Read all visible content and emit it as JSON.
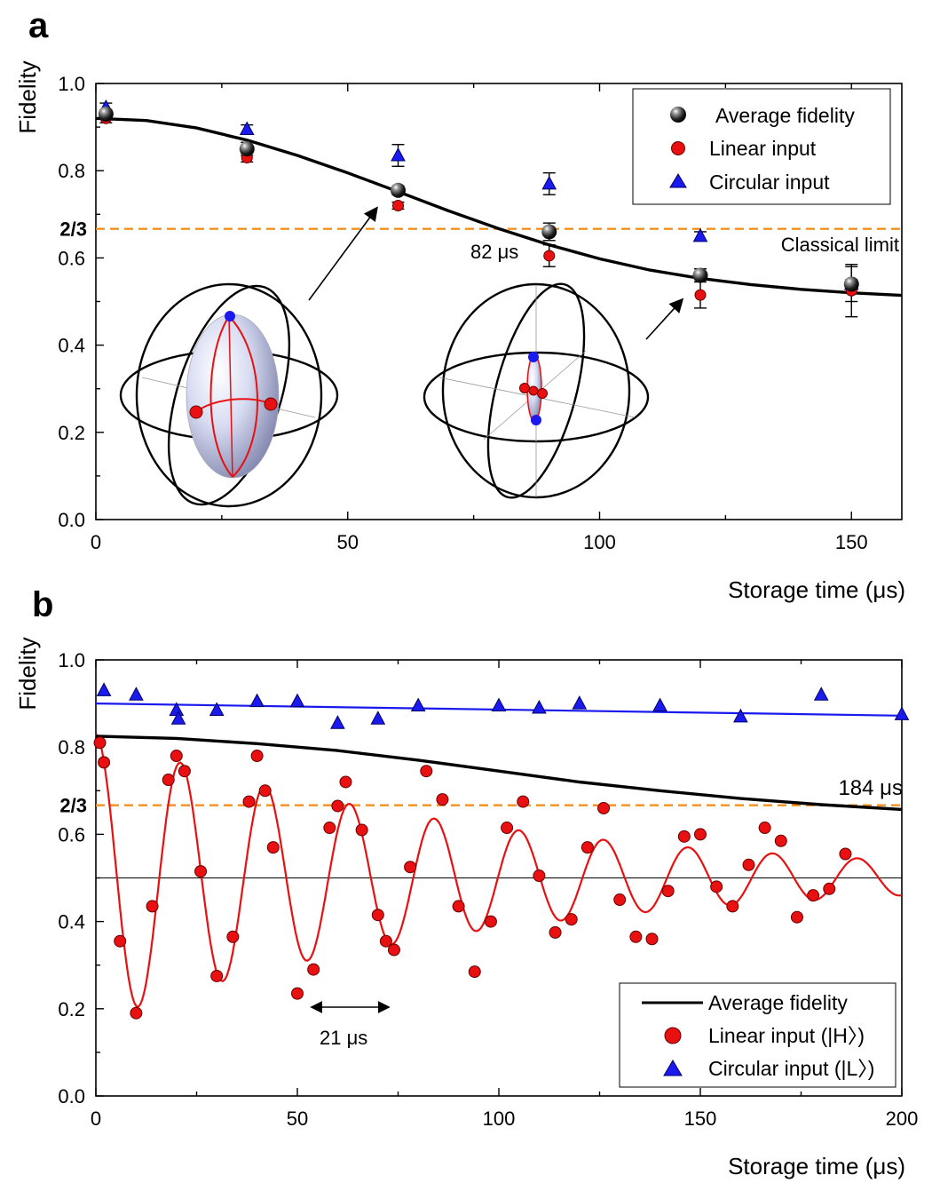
{
  "chart_data": [
    {
      "panel": "a",
      "type": "scatter",
      "xlabel": "Storage time (μs)",
      "ylabel": "Fidelity",
      "xlim": [
        0,
        160
      ],
      "ylim": [
        0,
        1.0
      ],
      "x_ticks": [
        0,
        50,
        100,
        150
      ],
      "y_ticks": [
        0.0,
        0.2,
        0.4,
        0.6,
        0.8,
        1.0
      ],
      "y_ticks_labeled": [
        "0.0",
        "0.2",
        "0.4",
        "0.6",
        "0.8",
        "1.0"
      ],
      "x_ticks_labeled": [
        "0",
        "50",
        "100",
        "150"
      ],
      "classical_limit_value": 0.6667,
      "classical_limit_label": "2/3",
      "classical_limit_text": "Classical limit",
      "decay_annotation": "82 μs",
      "legend_position": "top-right",
      "legend": [
        "Average fidelity",
        "Linear input",
        "Circular input"
      ],
      "series": [
        {
          "name": "Average fidelity",
          "color": "#111111",
          "x": [
            2,
            30,
            60,
            90,
            120,
            150
          ],
          "y": [
            0.93,
            0.85,
            0.755,
            0.66,
            0.56,
            0.54
          ],
          "err": [
            0.01,
            0.015,
            0.01,
            0.02,
            0.015,
            0.04
          ]
        },
        {
          "name": "Linear input",
          "color": "#e81010",
          "x": [
            2,
            30,
            60,
            90,
            120,
            150
          ],
          "y": [
            0.92,
            0.83,
            0.72,
            0.605,
            0.515,
            0.525
          ],
          "err": [
            0.01,
            0.01,
            0.008,
            0.025,
            0.03,
            0.06
          ]
        },
        {
          "name": "Circular input",
          "color": "#1a1aee",
          "x": [
            2,
            30,
            60,
            90,
            120,
            150
          ],
          "y": [
            0.945,
            0.895,
            0.835,
            0.77,
            0.65,
            0.54
          ],
          "err": [
            0.01,
            0.01,
            0.025,
            0.025,
            0.01,
            0.01
          ]
        }
      ],
      "fit": {
        "name": "Average fidelity fit",
        "color": "#000000",
        "x": [
          0,
          10,
          20,
          30,
          40,
          50,
          60,
          70,
          80,
          90,
          100,
          110,
          120,
          130,
          140,
          150,
          160
        ],
        "y": [
          0.92,
          0.915,
          0.898,
          0.87,
          0.835,
          0.795,
          0.752,
          0.708,
          0.667,
          0.63,
          0.598,
          0.572,
          0.553,
          0.539,
          0.528,
          0.52,
          0.514
        ]
      }
    },
    {
      "panel": "b",
      "type": "scatter",
      "xlabel": "Storage time (μs)",
      "ylabel": "Fidelity",
      "xlim": [
        0,
        200
      ],
      "ylim": [
        0,
        1.0
      ],
      "x_ticks_labeled": [
        "0",
        "50",
        "100",
        "150",
        "200"
      ],
      "y_ticks_labeled": [
        "0.0",
        "0.2",
        "0.4",
        "0.6",
        "0.8",
        "1.0"
      ],
      "classical_limit_value": 0.6667,
      "classical_limit_label": "2/3",
      "reference_line_value": 0.5,
      "decay_annotation": "184 μs",
      "period_annotation": "21 μs",
      "legend_position": "bottom-right",
      "legend": [
        "Average fidelity",
        "Linear input (|H〉)",
        "Circular input (|L〉)"
      ],
      "series": [
        {
          "name": "Linear input (|H〉)",
          "color": "#e81010",
          "x": [
            1,
            2,
            6,
            10,
            14,
            18,
            20,
            22,
            26,
            30,
            34,
            38,
            40,
            42,
            44,
            50,
            54,
            58,
            60,
            62,
            66,
            70,
            72,
            74,
            78,
            82,
            86,
            90,
            94,
            98,
            102,
            106,
            110,
            114,
            118,
            122,
            126,
            130,
            134,
            138,
            142,
            146,
            150,
            154,
            158,
            162,
            166,
            170,
            174,
            178,
            182,
            186
          ],
          "y": [
            0.81,
            0.765,
            0.355,
            0.19,
            0.435,
            0.725,
            0.78,
            0.745,
            0.515,
            0.275,
            0.365,
            0.675,
            0.78,
            0.7,
            0.57,
            0.235,
            0.29,
            0.615,
            0.665,
            0.72,
            0.61,
            0.415,
            0.355,
            0.335,
            0.525,
            0.745,
            0.68,
            0.435,
            0.285,
            0.4,
            0.615,
            0.675,
            0.505,
            0.375,
            0.405,
            0.57,
            0.66,
            0.45,
            0.365,
            0.36,
            0.47,
            0.595,
            0.6,
            0.48,
            0.435,
            0.53,
            0.615,
            0.585,
            0.41,
            0.46,
            0.475,
            0.555
          ]
        },
        {
          "name": "Circular input (|L〉)",
          "color": "#1a1aee",
          "x": [
            2,
            10,
            20,
            20.5,
            30,
            40,
            50,
            60,
            70,
            80,
            100,
            110,
            120,
            140,
            160,
            180,
            200
          ],
          "y": [
            0.93,
            0.92,
            0.885,
            0.865,
            0.885,
            0.905,
            0.905,
            0.855,
            0.865,
            0.895,
            0.895,
            0.89,
            0.9,
            0.895,
            0.87,
            0.92,
            0.875
          ]
        }
      ],
      "fits": [
        {
          "name": "Average fidelity",
          "color": "#000000",
          "x": [
            0,
            20,
            40,
            60,
            80,
            100,
            120,
            140,
            160,
            180,
            200
          ],
          "y": [
            0.825,
            0.82,
            0.808,
            0.792,
            0.77,
            0.745,
            0.72,
            0.7,
            0.682,
            0.668,
            0.657
          ]
        },
        {
          "name": "Circular fit",
          "color": "#1a1aee",
          "x": [
            0,
            200
          ],
          "y": [
            0.9,
            0.872
          ]
        },
        {
          "name": "Linear fit",
          "color": "#e81010",
          "model": "damped cosine",
          "mean": 0.5,
          "initial_amplitude": 0.33,
          "period_us": 21,
          "decay_us": 95
        }
      ]
    }
  ],
  "labels": {
    "panel_a": "a",
    "panel_b": "b"
  }
}
